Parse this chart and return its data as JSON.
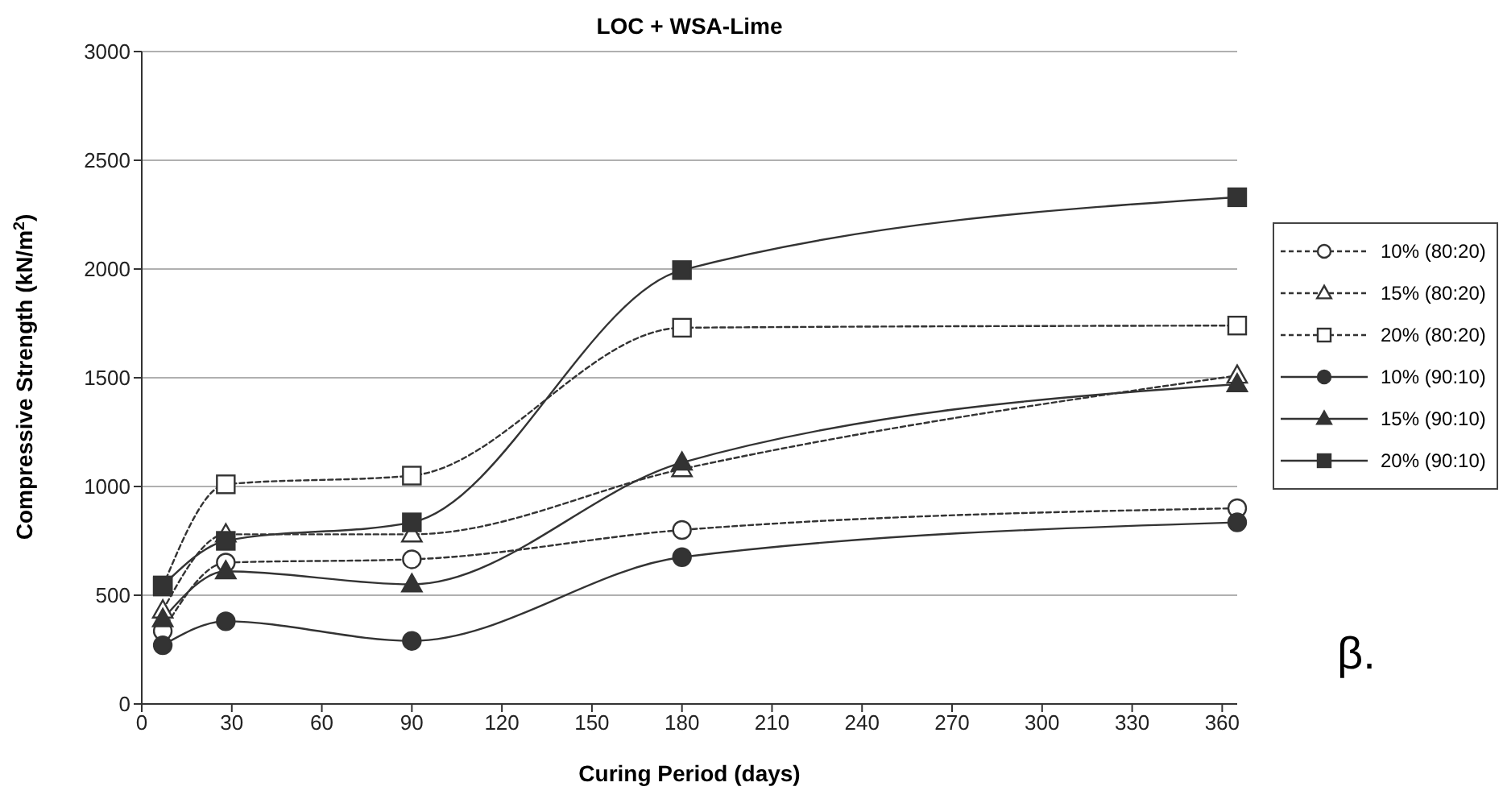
{
  "chart_data": {
    "type": "line",
    "title": "LOC + WSA-Lime",
    "xlabel": "Curing Period (days)",
    "ylabel": "Compressive Strength (kN/m$^{2}$)",
    "x": [
      7,
      28,
      90,
      180,
      365
    ],
    "series": [
      {
        "name": "10% (80:20)",
        "color": "#333333",
        "marker": "circle",
        "line_style": "dashed",
        "values": [
          335,
          650,
          665,
          800,
          900
        ]
      },
      {
        "name": "15% (80:20)",
        "color": "#333333",
        "marker": "triangle",
        "line_style": "dashed",
        "values": [
          430,
          780,
          780,
          1080,
          1510
        ]
      },
      {
        "name": "20% (80:20)",
        "color": "#333333",
        "marker": "square",
        "line_style": "dashed",
        "values": [
          540,
          1010,
          1050,
          1730,
          1740
        ]
      },
      {
        "name": "10% (90:10)",
        "color": "#333333",
        "marker": "circle",
        "line_style": "solid",
        "values": [
          270,
          380,
          290,
          675,
          835
        ]
      },
      {
        "name": "15% (90:10)",
        "color": "#333333",
        "marker": "triangle",
        "line_style": "solid",
        "values": [
          390,
          610,
          550,
          1110,
          1470
        ]
      },
      {
        "name": "20% (90:10)",
        "color": "#333333",
        "marker": "square",
        "line_style": "solid",
        "values": [
          545,
          750,
          835,
          1995,
          2330
        ]
      }
    ],
    "xlim": [
      0,
      365
    ],
    "xticks": [
      0,
      30,
      60,
      90,
      120,
      150,
      180,
      210,
      240,
      270,
      300,
      330,
      360
    ],
    "ylim": [
      0,
      3000
    ],
    "yticks": [
      0,
      500,
      1000,
      1500,
      2000,
      2500,
      3000
    ],
    "grid": "y",
    "legend": "right",
    "annotations": [
      "β."
    ]
  }
}
